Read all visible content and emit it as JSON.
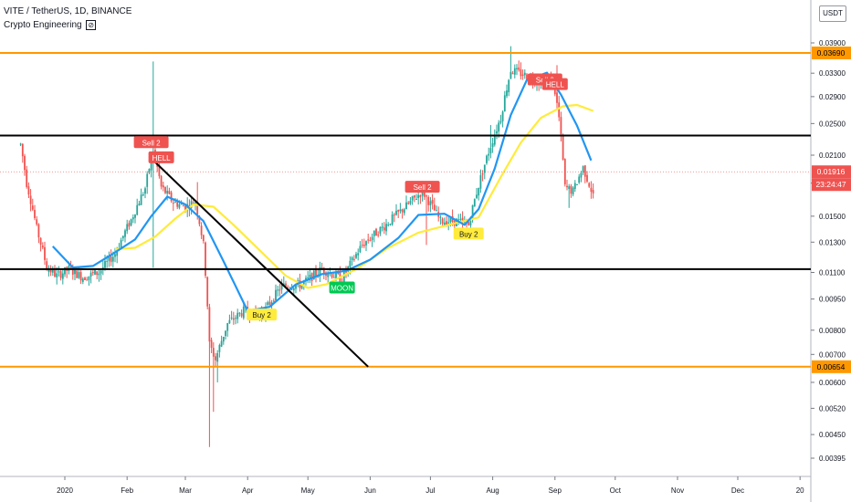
{
  "header": {
    "symbol_line": "VITE / TetherUS, 1D, BINANCE",
    "indicator": "Crypto Engineering",
    "indicator_icon": "eye-off-icon"
  },
  "scale_button": "USDT",
  "countdown": "23:24:47",
  "colors": {
    "up": "#26a69a",
    "down": "#ef5350",
    "ma_fast": "#2196f3",
    "ma_slow": "#ffeb3b",
    "level_orange": "#ff9800",
    "level_black": "#000000",
    "sell": "#ef5350",
    "buy": "#ffeb3b",
    "moon": "#00c853",
    "last_price": "#ef5350"
  },
  "chart_data": {
    "type": "candlestick",
    "y_scale": "log",
    "y_ticks": [
      "0.03900",
      "0.03300",
      "0.02900",
      "0.02500",
      "0.02100",
      "0.01800",
      "0.01500",
      "0.01300",
      "0.01100",
      "0.00950",
      "0.00800",
      "0.00700",
      "0.00600",
      "0.00520",
      "0.00450",
      "0.00395"
    ],
    "x_ticks": [
      "2020",
      "Feb",
      "Mar",
      "Apr",
      "May",
      "Jun",
      "Jul",
      "Aug",
      "Sep",
      "Oct",
      "Nov",
      "Dec",
      "20"
    ],
    "price_labels": [
      {
        "text": "0.03690",
        "color": "#ff9800",
        "text_color": "#000000"
      },
      {
        "text": "0.01916",
        "color": "#ef5350",
        "text_color": "#ffffff"
      },
      {
        "text": "0.00654",
        "color": "#ff9800",
        "text_color": "#000000"
      }
    ],
    "last_price": 0.01916,
    "horizontal_levels": [
      {
        "price": 0.0369,
        "color": "#ff9800"
      },
      {
        "price": 0.0234,
        "color": "#000000"
      },
      {
        "price": 0.0112,
        "color": "#000000"
      },
      {
        "price": 0.00654,
        "color": "#ff9800"
      }
    ],
    "trendline": {
      "from": {
        "date": "2020-02-15",
        "price": 0.0202
      },
      "to": {
        "date": "2020-05-31",
        "price": 0.00654
      }
    },
    "signals": [
      {
        "text": "Sell 2",
        "date": "2020-02-13",
        "price": 0.0225,
        "kind": "sell"
      },
      {
        "text": "HELL",
        "date": "2020-02-18",
        "price": 0.0207,
        "kind": "sell"
      },
      {
        "text": "Sell 2",
        "date": "2020-06-27",
        "price": 0.0176,
        "kind": "sell"
      },
      {
        "text": "Sell 2",
        "date": "2020-08-27",
        "price": 0.0318,
        "kind": "sell"
      },
      {
        "text": "HELL",
        "date": "2020-09-01",
        "price": 0.031,
        "kind": "sell"
      },
      {
        "text": "Buy 2",
        "date": "2020-07-20",
        "price": 0.0136,
        "kind": "buy"
      },
      {
        "text": "Buy 2",
        "date": "2020-04-08",
        "price": 0.0087,
        "kind": "buy"
      },
      {
        "text": "MOON",
        "date": "2020-05-18",
        "price": 0.0101,
        "kind": "moon"
      }
    ],
    "price_path": [
      [
        "2019-12-10",
        0.0223
      ],
      [
        "2019-12-13",
        0.018
      ],
      [
        "2019-12-18",
        0.014
      ],
      [
        "2019-12-23",
        0.0113
      ],
      [
        "2019-12-28",
        0.0108
      ],
      [
        "2020-01-03",
        0.0112
      ],
      [
        "2020-01-10",
        0.0107
      ],
      [
        "2020-01-18",
        0.011
      ],
      [
        "2020-01-26",
        0.0122
      ],
      [
        "2020-02-03",
        0.0147
      ],
      [
        "2020-02-10",
        0.0175
      ],
      [
        "2020-02-14",
        0.0216
      ],
      [
        "2020-02-18",
        0.0176
      ],
      [
        "2020-02-24",
        0.0162
      ],
      [
        "2020-03-01",
        0.0158
      ],
      [
        "2020-03-06",
        0.0163
      ],
      [
        "2020-03-10",
        0.0128
      ],
      [
        "2020-03-13",
        0.0074
      ],
      [
        "2020-03-16",
        0.0068
      ],
      [
        "2020-03-22",
        0.0083
      ],
      [
        "2020-03-30",
        0.0089
      ],
      [
        "2020-04-08",
        0.0087
      ],
      [
        "2020-04-18",
        0.0102
      ],
      [
        "2020-04-28",
        0.0103
      ],
      [
        "2020-05-08",
        0.0112
      ],
      [
        "2020-05-18",
        0.0106
      ],
      [
        "2020-05-28",
        0.0128
      ],
      [
        "2020-06-08",
        0.0142
      ],
      [
        "2020-06-18",
        0.0157
      ],
      [
        "2020-06-27",
        0.0172
      ],
      [
        "2020-07-06",
        0.0146
      ],
      [
        "2020-07-14",
        0.0146
      ],
      [
        "2020-07-20",
        0.0143
      ],
      [
        "2020-07-25",
        0.0178
      ],
      [
        "2020-07-30",
        0.0214
      ],
      [
        "2020-08-05",
        0.0258
      ],
      [
        "2020-08-10",
        0.0336
      ],
      [
        "2020-08-16",
        0.0328
      ],
      [
        "2020-08-24",
        0.0315
      ],
      [
        "2020-08-31",
        0.0318
      ],
      [
        "2020-09-03",
        0.0258
      ],
      [
        "2020-09-06",
        0.0176
      ],
      [
        "2020-09-10",
        0.0172
      ],
      [
        "2020-09-15",
        0.0196
      ],
      [
        "2020-09-20",
        0.0168
      ],
      [
        "2020-09-21",
        0.01916
      ]
    ],
    "ma_fast": [
      [
        "2019-12-26",
        0.0127
      ],
      [
        "2020-01-05",
        0.0113
      ],
      [
        "2020-01-15",
        0.0114
      ],
      [
        "2020-01-25",
        0.0122
      ],
      [
        "2020-02-05",
        0.0132
      ],
      [
        "2020-02-13",
        0.015
      ],
      [
        "2020-02-21",
        0.0167
      ],
      [
        "2020-03-01",
        0.016
      ],
      [
        "2020-03-10",
        0.0146
      ],
      [
        "2020-03-20",
        0.0117
      ],
      [
        "2020-04-01",
        0.0089
      ],
      [
        "2020-04-12",
        0.0091
      ],
      [
        "2020-04-25",
        0.0103
      ],
      [
        "2020-05-08",
        0.0109
      ],
      [
        "2020-05-20",
        0.0111
      ],
      [
        "2020-06-01",
        0.0118
      ],
      [
        "2020-06-15",
        0.0133
      ],
      [
        "2020-06-25",
        0.0151
      ],
      [
        "2020-07-08",
        0.0152
      ],
      [
        "2020-07-18",
        0.0143
      ],
      [
        "2020-07-25",
        0.0156
      ],
      [
        "2020-08-02",
        0.0195
      ],
      [
        "2020-08-10",
        0.0262
      ],
      [
        "2020-08-18",
        0.0318
      ],
      [
        "2020-08-28",
        0.0331
      ],
      [
        "2020-09-04",
        0.0293
      ],
      [
        "2020-09-12",
        0.0247
      ],
      [
        "2020-09-19",
        0.0204
      ]
    ],
    "ma_slow": [
      [
        "2020-01-26",
        0.0125
      ],
      [
        "2020-02-05",
        0.0126
      ],
      [
        "2020-02-15",
        0.0134
      ],
      [
        "2020-02-25",
        0.0148
      ],
      [
        "2020-03-05",
        0.016
      ],
      [
        "2020-03-15",
        0.0158
      ],
      [
        "2020-03-25",
        0.0143
      ],
      [
        "2020-04-05",
        0.0127
      ],
      [
        "2020-04-20",
        0.0108
      ],
      [
        "2020-05-01",
        0.0101
      ],
      [
        "2020-05-10",
        0.0103
      ],
      [
        "2020-05-25",
        0.0112
      ],
      [
        "2020-06-10",
        0.0126
      ],
      [
        "2020-06-25",
        0.0137
      ],
      [
        "2020-07-10",
        0.0143
      ],
      [
        "2020-07-25",
        0.0149
      ],
      [
        "2020-08-05",
        0.0186
      ],
      [
        "2020-08-15",
        0.0225
      ],
      [
        "2020-08-25",
        0.0258
      ],
      [
        "2020-09-05",
        0.0275
      ],
      [
        "2020-09-12",
        0.0277
      ],
      [
        "2020-09-20",
        0.0268
      ]
    ],
    "high_wicks": [
      [
        "2020-02-14",
        0.0352
      ],
      [
        "2020-03-07",
        0.0181
      ],
      [
        "2020-08-10",
        0.0383
      ],
      [
        "2020-09-02",
        0.0345
      ],
      [
        "2020-07-31",
        0.0248
      ],
      [
        "2020-06-27",
        0.0176
      ]
    ],
    "low_wicks": [
      [
        "2020-03-13",
        0.0042
      ],
      [
        "2020-03-15",
        0.0051
      ],
      [
        "2020-03-17",
        0.006
      ],
      [
        "2020-02-14",
        0.0113
      ],
      [
        "2020-06-29",
        0.0128
      ],
      [
        "2020-09-08",
        0.0157
      ]
    ]
  }
}
